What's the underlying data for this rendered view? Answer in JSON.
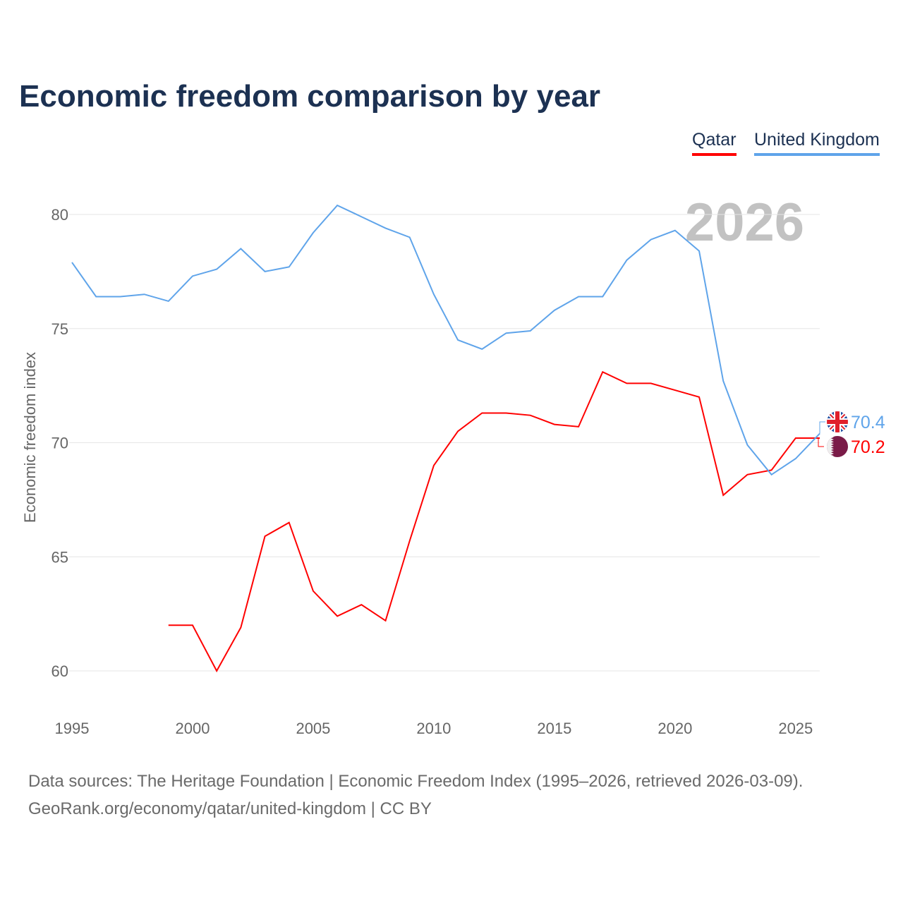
{
  "chart_data": {
    "type": "line",
    "title": "Economic freedom comparison by year",
    "xlabel": "",
    "ylabel": "Economic freedom index",
    "xlim": [
      1995,
      2026
    ],
    "ylim": [
      58,
      82
    ],
    "yticks": [
      60,
      65,
      70,
      75,
      80
    ],
    "xticks": [
      1995,
      2000,
      2005,
      2010,
      2015,
      2020,
      2025
    ],
    "grid": true,
    "legend_position": "top-right",
    "watermark_year": "2026",
    "series": [
      {
        "name": "Qatar",
        "color": "#ff0000",
        "end_label": "70.2",
        "x": [
          1999,
          2000,
          2001,
          2002,
          2003,
          2004,
          2005,
          2006,
          2007,
          2008,
          2009,
          2010,
          2011,
          2012,
          2013,
          2014,
          2015,
          2016,
          2017,
          2018,
          2019,
          2020,
          2021,
          2022,
          2023,
          2024,
          2025,
          2026
        ],
        "values": [
          62.0,
          62.0,
          60.0,
          61.9,
          65.9,
          66.5,
          63.5,
          62.4,
          62.9,
          62.2,
          65.7,
          69.0,
          70.5,
          71.3,
          71.3,
          71.2,
          70.8,
          70.7,
          73.1,
          72.6,
          72.6,
          72.3,
          72.0,
          67.7,
          68.6,
          68.8,
          70.2,
          70.2
        ]
      },
      {
        "name": "United Kingdom",
        "color": "#5fa4ea",
        "end_label": "70.4",
        "x": [
          1995,
          1996,
          1997,
          1998,
          1999,
          2000,
          2001,
          2002,
          2003,
          2004,
          2005,
          2006,
          2007,
          2008,
          2009,
          2010,
          2011,
          2012,
          2013,
          2014,
          2015,
          2016,
          2017,
          2018,
          2019,
          2020,
          2021,
          2022,
          2023,
          2024,
          2025,
          2026
        ],
        "values": [
          77.9,
          76.4,
          76.4,
          76.5,
          76.2,
          77.3,
          77.6,
          78.5,
          77.5,
          77.7,
          79.2,
          80.4,
          79.9,
          79.4,
          79.0,
          76.5,
          74.5,
          74.1,
          74.8,
          74.9,
          75.8,
          76.4,
          76.4,
          78.0,
          78.9,
          79.3,
          78.4,
          72.7,
          69.9,
          68.6,
          69.3,
          70.4
        ]
      }
    ]
  },
  "footer": {
    "line1": "Data sources: The Heritage Foundation | Economic Freedom Index (1995–2026, retrieved 2026-03-09).",
    "line2": "GeoRank.org/economy/qatar/united-kingdom | CC BY"
  }
}
